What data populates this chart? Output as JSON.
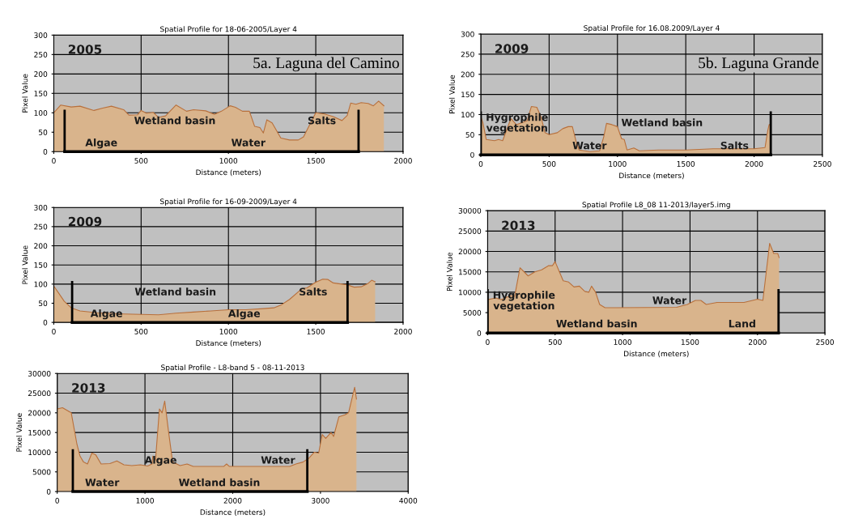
{
  "chart_data": [
    {
      "type": "area",
      "title": "Spatial Profile for 18-06-2005/Layer 4",
      "xlabel": "Distance (meters)",
      "ylabel": "Pixel Value",
      "xlim": [
        0,
        2000
      ],
      "ylim": [
        0,
        300
      ],
      "xticks": [
        0,
        500,
        1000,
        1500,
        2000
      ],
      "yticks": [
        0,
        50,
        100,
        150,
        200,
        250,
        300
      ],
      "grid": true,
      "series": [
        {
          "color": "#d9b48c",
          "x": [
            0,
            40,
            100,
            150,
            230,
            280,
            330,
            400,
            430,
            480,
            500,
            530,
            570,
            600,
            640,
            700,
            760,
            800,
            870,
            920,
            960,
            1010,
            1040,
            1080,
            1120,
            1150,
            1180,
            1200,
            1220,
            1250,
            1300,
            1350,
            1400,
            1430,
            1500,
            1550,
            1600,
            1650,
            1680,
            1700,
            1730,
            1760,
            1800,
            1830,
            1860,
            1890
          ],
          "values": [
            100,
            120,
            115,
            117,
            106,
            112,
            117,
            108,
            94,
            95,
            106,
            99,
            101,
            88,
            92,
            120,
            104,
            108,
            105,
            96,
            104,
            118,
            114,
            104,
            104,
            65,
            62,
            48,
            82,
            74,
            35,
            30,
            30,
            38,
            100,
            97,
            90,
            80,
            93,
            125,
            122,
            126,
            124,
            118,
            130,
            118
          ]
        }
      ],
      "ref_lines": [
        {
          "axis": "x",
          "value": 62,
          "color": "#000000"
        },
        {
          "axis": "x",
          "value": 1745,
          "color": "#000000"
        }
      ],
      "subtitle": "5a. Laguna del Camino",
      "annotations": [
        "2005",
        "Algae",
        "Wetland basin",
        "Water",
        "Salts"
      ]
    },
    {
      "type": "area",
      "title": "Spatial Profile for 16-09-2009/Layer 4",
      "xlabel": "Distance (meters)",
      "ylabel": "Pixel Value",
      "xlim": [
        0,
        2000
      ],
      "ylim": [
        0,
        300
      ],
      "xticks": [
        0,
        500,
        1000,
        1500,
        2000
      ],
      "yticks": [
        0,
        50,
        100,
        150,
        200,
        250,
        300
      ],
      "grid": true,
      "series": [
        {
          "color": "#d9b48c",
          "x": [
            0,
            30,
            60,
            100,
            150,
            250,
            400,
            500,
            600,
            700,
            800,
            900,
            1000,
            1100,
            1200,
            1260,
            1300,
            1350,
            1400,
            1420,
            1450,
            1500,
            1540,
            1570,
            1600,
            1650,
            1680,
            1720,
            1760,
            1800,
            1820,
            1840
          ],
          "values": [
            95,
            75,
            55,
            38,
            30,
            25,
            22,
            21,
            20,
            24,
            27,
            30,
            33,
            33,
            36,
            38,
            45,
            60,
            80,
            88,
            90,
            105,
            113,
            112,
            103,
            100,
            98,
            92,
            93,
            102,
            110,
            106
          ]
        }
      ],
      "ref_lines": [
        {
          "axis": "x",
          "value": 105,
          "color": "#000000"
        },
        {
          "axis": "x",
          "value": 1682,
          "color": "#000000"
        }
      ],
      "annotations": [
        "2009",
        "Algae",
        "Wetland basin",
        "Algae",
        "Salts"
      ]
    },
    {
      "type": "area",
      "title": "Spatial Profile - L8-band 5 - 08-11-2013",
      "xlabel": "Distance (meters)",
      "ylabel": "Pixel Value",
      "xlim": [
        0,
        4000
      ],
      "ylim": [
        0,
        30000
      ],
      "xticks": [
        0,
        1000,
        2000,
        3000,
        4000
      ],
      "yticks": [
        0,
        5000,
        10000,
        15000,
        20000,
        25000,
        30000
      ],
      "grid": true,
      "series": [
        {
          "color": "#d9b48c",
          "x": [
            0,
            60,
            160,
            225,
            260,
            300,
            345,
            395,
            440,
            500,
            600,
            680,
            760,
            850,
            950,
            1030,
            1080,
            1090,
            1120,
            1165,
            1195,
            1225,
            1270,
            1315,
            1400,
            1480,
            1550,
            1900,
            1930,
            1960,
            2650,
            2720,
            2800,
            2870,
            2930,
            2980,
            3020,
            3060,
            3120,
            3150,
            3210,
            3280,
            3320,
            3390,
            3410
          ],
          "values": [
            21000,
            21300,
            20000,
            12000,
            9000,
            7500,
            7000,
            9800,
            9300,
            7000,
            7100,
            7800,
            6800,
            6600,
            6800,
            6500,
            7000,
            9000,
            8000,
            21000,
            20000,
            23000,
            15000,
            7500,
            6600,
            7000,
            6400,
            6400,
            7000,
            6400,
            6400,
            7000,
            7500,
            8500,
            10000,
            9800,
            14500,
            13500,
            15000,
            14000,
            19000,
            19500,
            20000,
            26500,
            23500
          ]
        }
      ],
      "ref_lines": [
        {
          "axis": "x",
          "value": 178,
          "color": "#000000"
        },
        {
          "axis": "x",
          "value": 2850,
          "color": "#000000"
        }
      ],
      "annotations": [
        "2013",
        "Water",
        "Algae",
        "Wetland basin",
        "Water"
      ]
    },
    {
      "type": "area",
      "title": "Spatial Profile for 16.08.2009/Layer 4",
      "xlabel": "Distance (meters)",
      "ylabel": "Pixel Value",
      "xlim": [
        0,
        2500
      ],
      "ylim": [
        0,
        300
      ],
      "xticks": [
        0,
        500,
        1000,
        1500,
        2000,
        2500
      ],
      "yticks": [
        0,
        50,
        100,
        150,
        200,
        250,
        300
      ],
      "grid": true,
      "series": [
        {
          "color": "#d9b48c",
          "x": [
            0,
            15,
            40,
            100,
            130,
            160,
            220,
            260,
            300,
            340,
            370,
            410,
            440,
            470,
            500,
            560,
            600,
            640,
            670,
            700,
            720,
            800,
            870,
            900,
            920,
            960,
            1000,
            1030,
            1050,
            1070,
            1120,
            1160,
            1300,
            1500,
            1700,
            2000,
            2080,
            2100,
            2110,
            2120
          ],
          "values": [
            95,
            80,
            38,
            35,
            38,
            35,
            90,
            75,
            80,
            85,
            120,
            118,
            95,
            55,
            50,
            55,
            65,
            70,
            70,
            30,
            12,
            8,
            10,
            45,
            78,
            75,
            70,
            40,
            38,
            12,
            17,
            10,
            12,
            12,
            15,
            15,
            18,
            60,
            75,
            75
          ]
        }
      ],
      "ref_lines": [
        {
          "axis": "x",
          "value": 0,
          "color": "#000000"
        },
        {
          "axis": "x",
          "value": 2122,
          "color": "#000000"
        }
      ],
      "subtitle": "5b. Laguna Grande",
      "annotations": [
        "2009",
        "Hygrophile\nvegetation",
        "Water",
        "Wetland basin",
        "Salts"
      ]
    },
    {
      "type": "area",
      "title": "Spatial Profile L8_08 11-2013/layer5.img",
      "xlabel": "Distance (meters)",
      "ylabel": "Pixel Value",
      "xlim": [
        0,
        2500
      ],
      "ylim": [
        0,
        30000
      ],
      "xticks": [
        0,
        500,
        1000,
        1500,
        2000,
        2500
      ],
      "yticks": [
        0,
        5000,
        10000,
        15000,
        20000,
        25000,
        30000
      ],
      "grid": true,
      "series": [
        {
          "color": "#d9b48c",
          "x": [
            0,
            60,
            100,
            170,
            200,
            240,
            300,
            350,
            400,
            450,
            480,
            500,
            560,
            600,
            640,
            680,
            720,
            750,
            770,
            800,
            830,
            870,
            1400,
            1480,
            1540,
            1580,
            1620,
            1700,
            1900,
            2000,
            2040,
            2090,
            2120,
            2150,
            2160
          ],
          "values": [
            8200,
            8600,
            8200,
            9200,
            9000,
            16000,
            14000,
            15000,
            15500,
            16500,
            16500,
            17500,
            12800,
            12500,
            11300,
            11500,
            10200,
            10000,
            11500,
            10000,
            7000,
            6200,
            6300,
            7000,
            8000,
            8000,
            7000,
            7500,
            7500,
            8300,
            8000,
            22000,
            19500,
            19500,
            18500
          ]
        }
      ],
      "ref_lines": [
        {
          "axis": "x",
          "value": 0,
          "color": "#000000"
        },
        {
          "axis": "x",
          "value": 2156,
          "color": "#000000"
        }
      ],
      "annotations": [
        "2013",
        "Hygrophile\nvegetation",
        "Wetland basin",
        "Water",
        "Land"
      ]
    }
  ]
}
